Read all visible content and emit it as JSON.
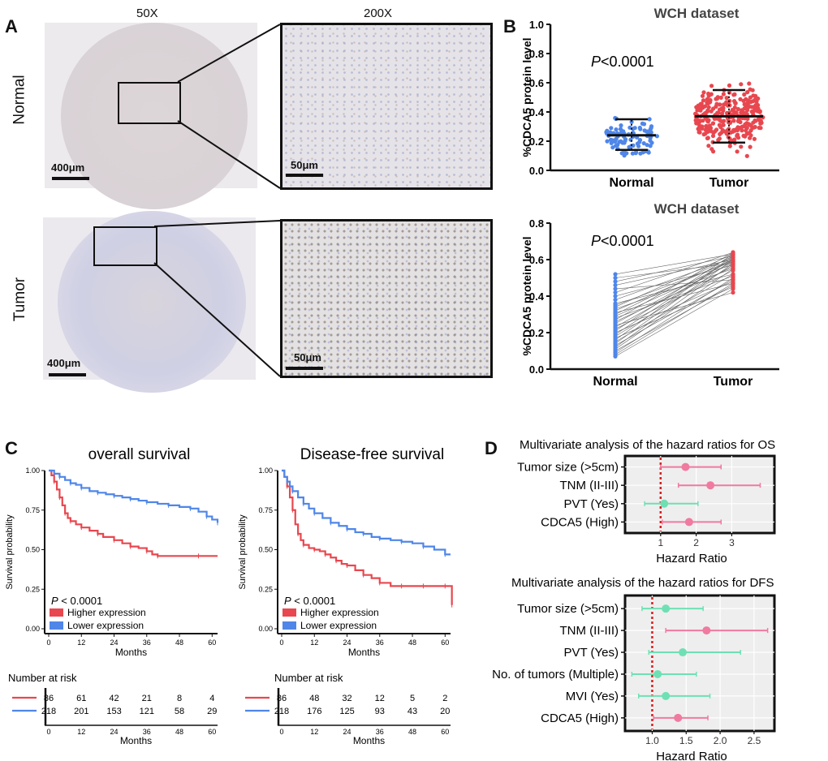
{
  "panel_labels": {
    "a": "A",
    "b": "B",
    "c": "C",
    "d": "D"
  },
  "panel_a": {
    "col_50x": "50X",
    "col_200x": "200X",
    "row_normal": "Normal",
    "row_tumor": "Tumor",
    "scale_400": "400μm",
    "scale_50": "50μm"
  },
  "colors": {
    "blue": "#4f86e8",
    "red": "#e8474f",
    "pink": "#f07aa0",
    "teal": "#6fe0b4",
    "dotted_red": "#d62020"
  },
  "chart_data": [
    {
      "id": "b_top",
      "type": "scatter",
      "title": "WCH dataset",
      "ylabel": "%CDCA5 protein level",
      "categories": [
        "Normal",
        "Tumor"
      ],
      "ylim": [
        0,
        1.0
      ],
      "yticks": [
        "0.0",
        "0.2",
        "0.4",
        "0.6",
        "0.8",
        "1.0"
      ],
      "annotation": "P<0.0001",
      "summary": [
        {
          "name": "Normal",
          "mean": 0.24,
          "sd_low": 0.14,
          "sd_high": 0.35,
          "n": 90
        },
        {
          "name": "Tumor",
          "mean": 0.37,
          "sd_low": 0.19,
          "sd_high": 0.55,
          "n": 300
        }
      ]
    },
    {
      "id": "b_bottom",
      "type": "line",
      "title": "WCH dataset",
      "ylabel": "%CDCA5 protein level",
      "categories": [
        "Normal",
        "Tumor"
      ],
      "ylim": [
        0,
        0.8
      ],
      "yticks": [
        "0.0",
        "0.2",
        "0.4",
        "0.6",
        "0.8"
      ],
      "annotation": "P<0.0001",
      "pairs": [
        [
          0.07,
          0.44
        ],
        [
          0.08,
          0.47
        ],
        [
          0.09,
          0.5
        ],
        [
          0.1,
          0.46
        ],
        [
          0.11,
          0.55
        ],
        [
          0.12,
          0.58
        ],
        [
          0.13,
          0.49
        ],
        [
          0.14,
          0.6
        ],
        [
          0.15,
          0.52
        ],
        [
          0.16,
          0.62
        ],
        [
          0.17,
          0.45
        ],
        [
          0.18,
          0.57
        ],
        [
          0.19,
          0.61
        ],
        [
          0.2,
          0.48
        ],
        [
          0.21,
          0.63
        ],
        [
          0.22,
          0.54
        ],
        [
          0.23,
          0.59
        ],
        [
          0.24,
          0.42
        ],
        [
          0.25,
          0.6
        ],
        [
          0.26,
          0.56
        ],
        [
          0.27,
          0.64
        ],
        [
          0.28,
          0.51
        ],
        [
          0.29,
          0.58
        ],
        [
          0.3,
          0.62
        ],
        [
          0.31,
          0.47
        ],
        [
          0.32,
          0.6
        ],
        [
          0.33,
          0.55
        ],
        [
          0.34,
          0.63
        ],
        [
          0.35,
          0.59
        ],
        [
          0.36,
          0.52
        ],
        [
          0.38,
          0.61
        ],
        [
          0.4,
          0.57
        ],
        [
          0.42,
          0.64
        ],
        [
          0.44,
          0.49
        ],
        [
          0.46,
          0.6
        ],
        [
          0.48,
          0.62
        ],
        [
          0.5,
          0.58
        ],
        [
          0.52,
          0.63
        ]
      ]
    },
    {
      "id": "c_os",
      "type": "line",
      "title": "overall survival",
      "xlabel": "Months",
      "ylabel": "Survival probability",
      "xlim": [
        0,
        62
      ],
      "ylim": [
        0,
        1.0
      ],
      "xticks": [
        0,
        12,
        24,
        36,
        48,
        60
      ],
      "yticks": [
        "0.00",
        "0.25",
        "0.50",
        "0.75",
        "1.00"
      ],
      "annotation": "< 0.0001",
      "series": [
        {
          "name": "Higher expression",
          "x": [
            0,
            1,
            2,
            3,
            4,
            5,
            6,
            7,
            8,
            10,
            12,
            15,
            18,
            20,
            24,
            27,
            30,
            33,
            36,
            38,
            40,
            48,
            55,
            62
          ],
          "y": [
            1.0,
            0.97,
            0.93,
            0.88,
            0.83,
            0.78,
            0.73,
            0.7,
            0.68,
            0.66,
            0.64,
            0.62,
            0.6,
            0.58,
            0.56,
            0.54,
            0.52,
            0.51,
            0.49,
            0.47,
            0.46,
            0.46,
            0.46,
            0.46
          ]
        },
        {
          "name": "Lower expression",
          "x": [
            0,
            2,
            4,
            6,
            8,
            10,
            12,
            15,
            18,
            21,
            24,
            27,
            30,
            33,
            36,
            40,
            44,
            48,
            52,
            55,
            58,
            60,
            62
          ],
          "y": [
            1.0,
            0.98,
            0.96,
            0.94,
            0.92,
            0.91,
            0.89,
            0.87,
            0.86,
            0.85,
            0.84,
            0.83,
            0.82,
            0.81,
            0.8,
            0.79,
            0.78,
            0.77,
            0.76,
            0.74,
            0.71,
            0.69,
            0.67
          ]
        }
      ],
      "risk_table": {
        "title": "Number at risk",
        "xlabel": "Months",
        "rows": [
          {
            "name": "Higher expression",
            "values": [
              "86",
              "61",
              "42",
              "21",
              "8",
              "4"
            ]
          },
          {
            "name": "Lower expression",
            "values": [
              "218",
              "201",
              "153",
              "121",
              "58",
              "29"
            ]
          }
        ]
      }
    },
    {
      "id": "c_dfs",
      "type": "line",
      "title": "Disease-free survival",
      "xlabel": "Months",
      "ylabel": "Survival probability",
      "xlim": [
        0,
        62
      ],
      "ylim": [
        0,
        1.0
      ],
      "xticks": [
        0,
        12,
        24,
        36,
        48,
        60
      ],
      "yticks": [
        "0.00",
        "0.25",
        "0.50",
        "0.75",
        "1.00"
      ],
      "annotation": "< 0.0001",
      "series": [
        {
          "name": "Higher expression",
          "x": [
            0,
            1,
            2,
            3,
            4,
            5,
            6,
            7,
            8,
            10,
            12,
            14,
            16,
            18,
            20,
            22,
            24,
            27,
            30,
            33,
            36,
            40,
            44,
            48,
            52,
            56,
            60,
            62,
            62.5
          ],
          "y": [
            1.0,
            0.96,
            0.9,
            0.83,
            0.75,
            0.66,
            0.6,
            0.56,
            0.53,
            0.51,
            0.5,
            0.49,
            0.47,
            0.45,
            0.43,
            0.41,
            0.4,
            0.37,
            0.34,
            0.32,
            0.29,
            0.27,
            0.27,
            0.27,
            0.27,
            0.27,
            0.27,
            0.27,
            0.15
          ]
        },
        {
          "name": "Lower expression",
          "x": [
            0,
            1,
            2,
            3,
            4,
            6,
            8,
            10,
            12,
            15,
            18,
            21,
            24,
            27,
            30,
            33,
            36,
            40,
            44,
            48,
            52,
            56,
            60,
            62
          ],
          "y": [
            1.0,
            0.96,
            0.93,
            0.9,
            0.87,
            0.83,
            0.79,
            0.76,
            0.73,
            0.7,
            0.67,
            0.65,
            0.63,
            0.61,
            0.6,
            0.58,
            0.57,
            0.56,
            0.55,
            0.54,
            0.52,
            0.5,
            0.47,
            0.47
          ]
        }
      ],
      "risk_table": {
        "title": "Number at risk",
        "xlabel": "Months",
        "rows": [
          {
            "name": "Higher expression",
            "values": [
              "86",
              "48",
              "32",
              "12",
              "5",
              "2"
            ]
          },
          {
            "name": "Lower expression",
            "values": [
              "218",
              "176",
              "125",
              "93",
              "43",
              "20"
            ]
          }
        ]
      }
    },
    {
      "id": "d_os",
      "type": "scatter",
      "title": "Multivariate analysis of the hazard ratios for OS",
      "xlabel": "Hazard Ratio",
      "xlim": [
        0.0,
        4.2
      ],
      "xticks": [
        "1",
        "2",
        "3"
      ],
      "reference": 1,
      "rows": [
        {
          "label": "Tumor size (>5cm)",
          "hr": 1.7,
          "low": 1.0,
          "high": 2.7,
          "color": "pink"
        },
        {
          "label": "TNM (II-III)",
          "hr": 2.4,
          "low": 1.5,
          "high": 3.8,
          "color": "pink"
        },
        {
          "label": "PVT (Yes)",
          "hr": 1.1,
          "low": 0.55,
          "high": 2.05,
          "color": "teal"
        },
        {
          "label": "CDCA5 (High)",
          "hr": 1.8,
          "low": 1.05,
          "high": 2.7,
          "color": "pink"
        }
      ]
    },
    {
      "id": "d_dfs",
      "type": "scatter",
      "title": "Multivariate analysis of the hazard ratios for DFS",
      "xlabel": "Hazard Ratio",
      "xlim": [
        0.6,
        2.8
      ],
      "xticks": [
        "1.0",
        "1.5",
        "2.0",
        "2.5"
      ],
      "reference": 1.0,
      "rows": [
        {
          "label": "Tumor size (>5cm)",
          "hr": 1.2,
          "low": 0.85,
          "high": 1.75,
          "color": "teal"
        },
        {
          "label": "TNM (II-III)",
          "hr": 1.8,
          "low": 1.2,
          "high": 2.7,
          "color": "pink"
        },
        {
          "label": "PVT (Yes)",
          "hr": 1.45,
          "low": 0.95,
          "high": 2.3,
          "color": "teal"
        },
        {
          "label": "No. of tumors (Multiple)",
          "hr": 1.08,
          "low": 0.7,
          "high": 1.65,
          "color": "teal"
        },
        {
          "label": "MVI (Yes)",
          "hr": 1.2,
          "low": 0.8,
          "high": 1.85,
          "color": "teal"
        },
        {
          "label": "CDCA5 (High)",
          "hr": 1.38,
          "low": 1.02,
          "high": 1.82,
          "color": "pink"
        }
      ]
    }
  ]
}
